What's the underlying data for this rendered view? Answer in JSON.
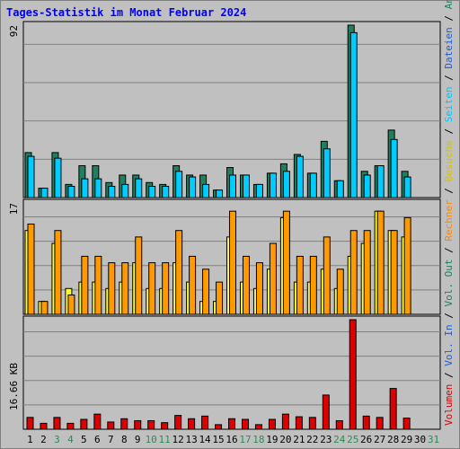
{
  "title": "Tages-Statistik im Monat Februar 2024",
  "colors": {
    "anfragen": "#1f7f5f",
    "dateien": "#00ccff",
    "seiten": "#00e5ff",
    "besuche": "#ffff33",
    "rechner": "#ff9900",
    "volumen": "#dd0000",
    "weekend_label": "#2e8b57",
    "weekday_label": "#000000",
    "title": "#0000ff"
  },
  "side_label": [
    {
      "text": "Volumen",
      "color": "#dd0000"
    },
    {
      "text": " / ",
      "color": "#000000"
    },
    {
      "text": "Vol. In",
      "color": "#1e5cd8"
    },
    {
      "text": " / ",
      "color": "#000000"
    },
    {
      "text": "Vol. Out",
      "color": "#1f7f5f"
    },
    {
      "text": " / ",
      "color": "#000000"
    },
    {
      "text": "Rechner",
      "color": "#ff8800"
    },
    {
      "text": " / ",
      "color": "#000000"
    },
    {
      "text": "Besuche",
      "color": "#d4c400"
    },
    {
      "text": " / ",
      "color": "#000000"
    },
    {
      "text": "Seiten",
      "color": "#00c8ff"
    },
    {
      "text": " / ",
      "color": "#000000"
    },
    {
      "text": "Dateien",
      "color": "#1e5cd8"
    },
    {
      "text": " / ",
      "color": "#000000"
    },
    {
      "text": "Anfragen",
      "color": "#1f7f5f"
    }
  ],
  "chart_data": [
    {
      "type": "bar",
      "panel": "requests",
      "ymax_label": "92",
      "ylim": [
        0,
        92
      ],
      "categories": [
        "1",
        "2",
        "3",
        "4",
        "5",
        "6",
        "7",
        "8",
        "9",
        "10",
        "11",
        "12",
        "13",
        "14",
        "15",
        "16",
        "17",
        "18",
        "19",
        "20",
        "21",
        "22",
        "23",
        "24",
        "25",
        "26",
        "27",
        "28",
        "29",
        "30",
        "31"
      ],
      "weekend_days": [
        "3",
        "4",
        "10",
        "11",
        "17",
        "18",
        "24",
        "25",
        "31"
      ],
      "series": [
        {
          "name": "Anfragen",
          "values": [
            24,
            5,
            24,
            7,
            17,
            17,
            8,
            12,
            12,
            8,
            7,
            17,
            12,
            12,
            4,
            16,
            12,
            7,
            13,
            18,
            23,
            13,
            30,
            9,
            92,
            14,
            17,
            36,
            14,
            0,
            0
          ]
        },
        {
          "name": "Dateien",
          "values": [
            22,
            5,
            21,
            6,
            10,
            10,
            6,
            7,
            10,
            6,
            6,
            14,
            11,
            7,
            4,
            12,
            12,
            7,
            13,
            14,
            22,
            13,
            26,
            9,
            88,
            12,
            17,
            31,
            11,
            0,
            0
          ]
        }
      ]
    },
    {
      "type": "bar",
      "panel": "visits",
      "ymax_label": "17",
      "ylim": [
        0,
        17
      ],
      "categories": [
        "1",
        "2",
        "3",
        "4",
        "5",
        "6",
        "7",
        "8",
        "9",
        "10",
        "11",
        "12",
        "13",
        "14",
        "15",
        "16",
        "17",
        "18",
        "19",
        "20",
        "21",
        "22",
        "23",
        "24",
        "25",
        "26",
        "27",
        "28",
        "29",
        "30",
        "31"
      ],
      "series": [
        {
          "name": "Besuche",
          "values": [
            13,
            2,
            11,
            4,
            5,
            5,
            4,
            5,
            8,
            4,
            4,
            8,
            5,
            2,
            2,
            12,
            5,
            4,
            7,
            15,
            5,
            5,
            7,
            4,
            9,
            11,
            16,
            13,
            12,
            0,
            0
          ]
        },
        {
          "name": "Rechner",
          "values": [
            14,
            2,
            13,
            3,
            9,
            9,
            8,
            8,
            12,
            8,
            8,
            13,
            9,
            7,
            5,
            16,
            9,
            8,
            11,
            16,
            9,
            9,
            12,
            7,
            13,
            13,
            16,
            13,
            15,
            0,
            0
          ]
        }
      ]
    },
    {
      "type": "bar",
      "panel": "volume",
      "ymax_label": "16.66 KB",
      "ylim": [
        0,
        16.66
      ],
      "categories": [
        "1",
        "2",
        "3",
        "4",
        "5",
        "6",
        "7",
        "8",
        "9",
        "10",
        "11",
        "12",
        "13",
        "14",
        "15",
        "16",
        "17",
        "18",
        "19",
        "20",
        "21",
        "22",
        "23",
        "24",
        "25",
        "26",
        "27",
        "28",
        "29",
        "30",
        "31"
      ],
      "series": [
        {
          "name": "Volumen",
          "values": [
            1.8,
            0.9,
            1.8,
            0.9,
            1.5,
            2.3,
            1.1,
            1.6,
            1.3,
            1.3,
            1.0,
            2.1,
            1.6,
            2.0,
            0.7,
            1.6,
            1.5,
            0.7,
            1.5,
            2.3,
            1.9,
            1.8,
            5.2,
            1.3,
            16.66,
            2.0,
            1.8,
            6.2,
            1.7,
            0,
            0
          ]
        }
      ]
    }
  ]
}
